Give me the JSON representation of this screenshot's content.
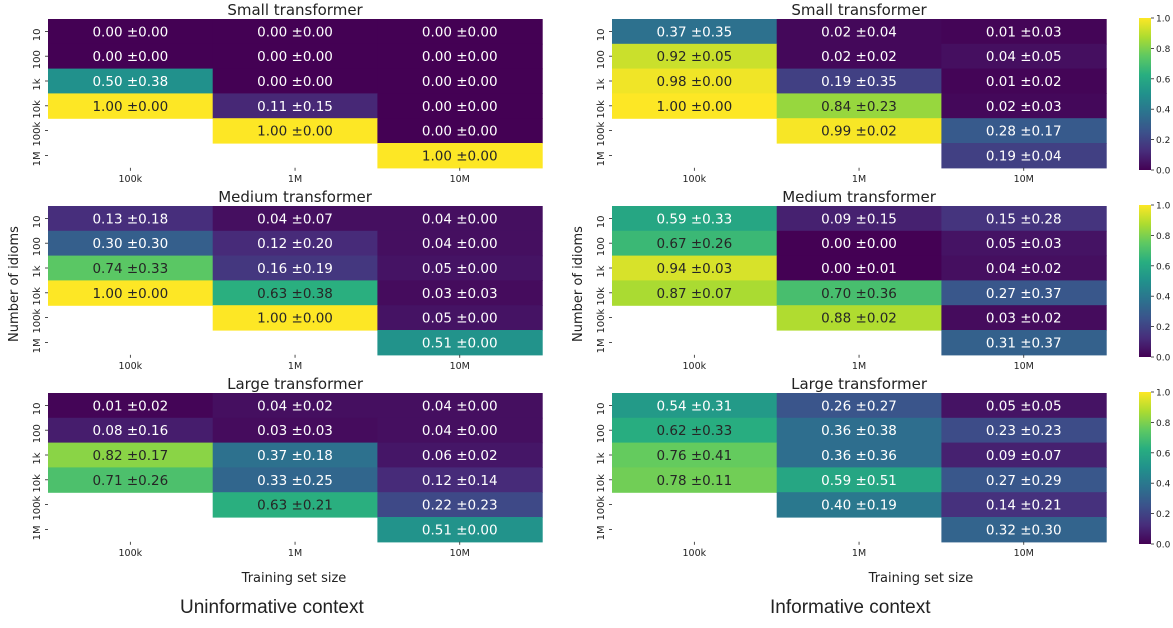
{
  "figure": {
    "ylabel": "Number of idioms",
    "xlabel": "Training set size",
    "x_ticks": [
      "100k",
      "1M",
      "10M"
    ],
    "y_ticks": [
      "10",
      "100",
      "1k",
      "10k",
      "100k",
      "1M"
    ],
    "colorbar_ticks": [
      "0.0",
      "0.2",
      "0.4",
      "0.6",
      "0.8",
      "1.0"
    ],
    "colormap": "viridis",
    "left_caption": "Uninformative context",
    "right_caption": "Informative context"
  },
  "chart_data": [
    {
      "type": "heatmap",
      "context": "Uninformative context",
      "title": "Small transformer",
      "x": [
        "100k",
        "1M",
        "10M"
      ],
      "y": [
        "10",
        "100",
        "1k",
        "10k",
        "100k",
        "1M"
      ],
      "mean": [
        [
          0.0,
          0.0,
          0.0
        ],
        [
          0.0,
          0.0,
          0.0
        ],
        [
          0.5,
          0.0,
          0.0
        ],
        [
          1.0,
          0.11,
          0.0
        ],
        [
          null,
          1.0,
          0.0
        ],
        [
          null,
          null,
          1.0
        ]
      ],
      "std": [
        [
          0.0,
          0.0,
          0.0
        ],
        [
          0.0,
          0.0,
          0.0
        ],
        [
          0.38,
          0.0,
          0.0
        ],
        [
          0.0,
          0.15,
          0.0
        ],
        [
          null,
          0.0,
          0.0
        ],
        [
          null,
          null,
          0.0
        ]
      ]
    },
    {
      "type": "heatmap",
      "context": "Uninformative context",
      "title": "Medium transformer",
      "x": [
        "100k",
        "1M",
        "10M"
      ],
      "y": [
        "10",
        "100",
        "1k",
        "10k",
        "100k",
        "1M"
      ],
      "mean": [
        [
          0.13,
          0.04,
          0.04
        ],
        [
          0.3,
          0.12,
          0.04
        ],
        [
          0.74,
          0.16,
          0.05
        ],
        [
          1.0,
          0.63,
          0.03
        ],
        [
          null,
          1.0,
          0.05
        ],
        [
          null,
          null,
          0.51
        ]
      ],
      "std": [
        [
          0.18,
          0.07,
          0.0
        ],
        [
          0.3,
          0.2,
          0.0
        ],
        [
          0.33,
          0.19,
          0.0
        ],
        [
          0.0,
          0.38,
          0.03
        ],
        [
          null,
          0.0,
          0.0
        ],
        [
          null,
          null,
          0.0
        ]
      ]
    },
    {
      "type": "heatmap",
      "context": "Uninformative context",
      "title": "Large transformer",
      "x": [
        "100k",
        "1M",
        "10M"
      ],
      "y": [
        "10",
        "100",
        "1k",
        "10k",
        "100k",
        "1M"
      ],
      "mean": [
        [
          0.01,
          0.04,
          0.04
        ],
        [
          0.08,
          0.03,
          0.04
        ],
        [
          0.82,
          0.37,
          0.06
        ],
        [
          0.71,
          0.33,
          0.12
        ],
        [
          null,
          0.63,
          0.22
        ],
        [
          null,
          null,
          0.51
        ]
      ],
      "std": [
        [
          0.02,
          0.02,
          0.0
        ],
        [
          0.16,
          0.03,
          0.0
        ],
        [
          0.17,
          0.18,
          0.02
        ],
        [
          0.26,
          0.25,
          0.14
        ],
        [
          null,
          0.21,
          0.23
        ],
        [
          null,
          null,
          0.0
        ]
      ]
    },
    {
      "type": "heatmap",
      "context": "Informative context",
      "title": "Small transformer",
      "x": [
        "100k",
        "1M",
        "10M"
      ],
      "y": [
        "10",
        "100",
        "1k",
        "10k",
        "100k",
        "1M"
      ],
      "mean": [
        [
          0.37,
          0.02,
          0.01
        ],
        [
          0.92,
          0.02,
          0.04
        ],
        [
          0.98,
          0.19,
          0.01
        ],
        [
          1.0,
          0.84,
          0.02
        ],
        [
          null,
          0.99,
          0.28
        ],
        [
          null,
          null,
          0.19
        ]
      ],
      "std": [
        [
          0.35,
          0.04,
          0.03
        ],
        [
          0.05,
          0.02,
          0.05
        ],
        [
          0.0,
          0.35,
          0.02
        ],
        [
          0.0,
          0.23,
          0.03
        ],
        [
          null,
          0.02,
          0.17
        ],
        [
          null,
          null,
          0.04
        ]
      ]
    },
    {
      "type": "heatmap",
      "context": "Informative context",
      "title": "Medium transformer",
      "x": [
        "100k",
        "1M",
        "10M"
      ],
      "y": [
        "10",
        "100",
        "1k",
        "10k",
        "100k",
        "1M"
      ],
      "mean": [
        [
          0.59,
          0.09,
          0.15
        ],
        [
          0.67,
          0.0,
          0.05
        ],
        [
          0.94,
          0.0,
          0.04
        ],
        [
          0.87,
          0.7,
          0.27
        ],
        [
          null,
          0.88,
          0.03
        ],
        [
          null,
          null,
          0.31
        ]
      ],
      "std": [
        [
          0.33,
          0.15,
          0.28
        ],
        [
          0.26,
          0.0,
          0.03
        ],
        [
          0.03,
          0.01,
          0.02
        ],
        [
          0.07,
          0.36,
          0.37
        ],
        [
          null,
          0.02,
          0.02
        ],
        [
          null,
          null,
          0.37
        ]
      ]
    },
    {
      "type": "heatmap",
      "context": "Informative context",
      "title": "Large transformer",
      "x": [
        "100k",
        "1M",
        "10M"
      ],
      "y": [
        "10",
        "100",
        "1k",
        "10k",
        "100k",
        "1M"
      ],
      "mean": [
        [
          0.54,
          0.26,
          0.05
        ],
        [
          0.62,
          0.36,
          0.23
        ],
        [
          0.76,
          0.36,
          0.09
        ],
        [
          0.78,
          0.59,
          0.27
        ],
        [
          null,
          0.4,
          0.14
        ],
        [
          null,
          null,
          0.32
        ]
      ],
      "std": [
        [
          0.31,
          0.27,
          0.05
        ],
        [
          0.33,
          0.38,
          0.23
        ],
        [
          0.41,
          0.36,
          0.07
        ],
        [
          0.11,
          0.51,
          0.29
        ],
        [
          null,
          0.19,
          0.21
        ],
        [
          null,
          null,
          0.3
        ]
      ]
    }
  ]
}
